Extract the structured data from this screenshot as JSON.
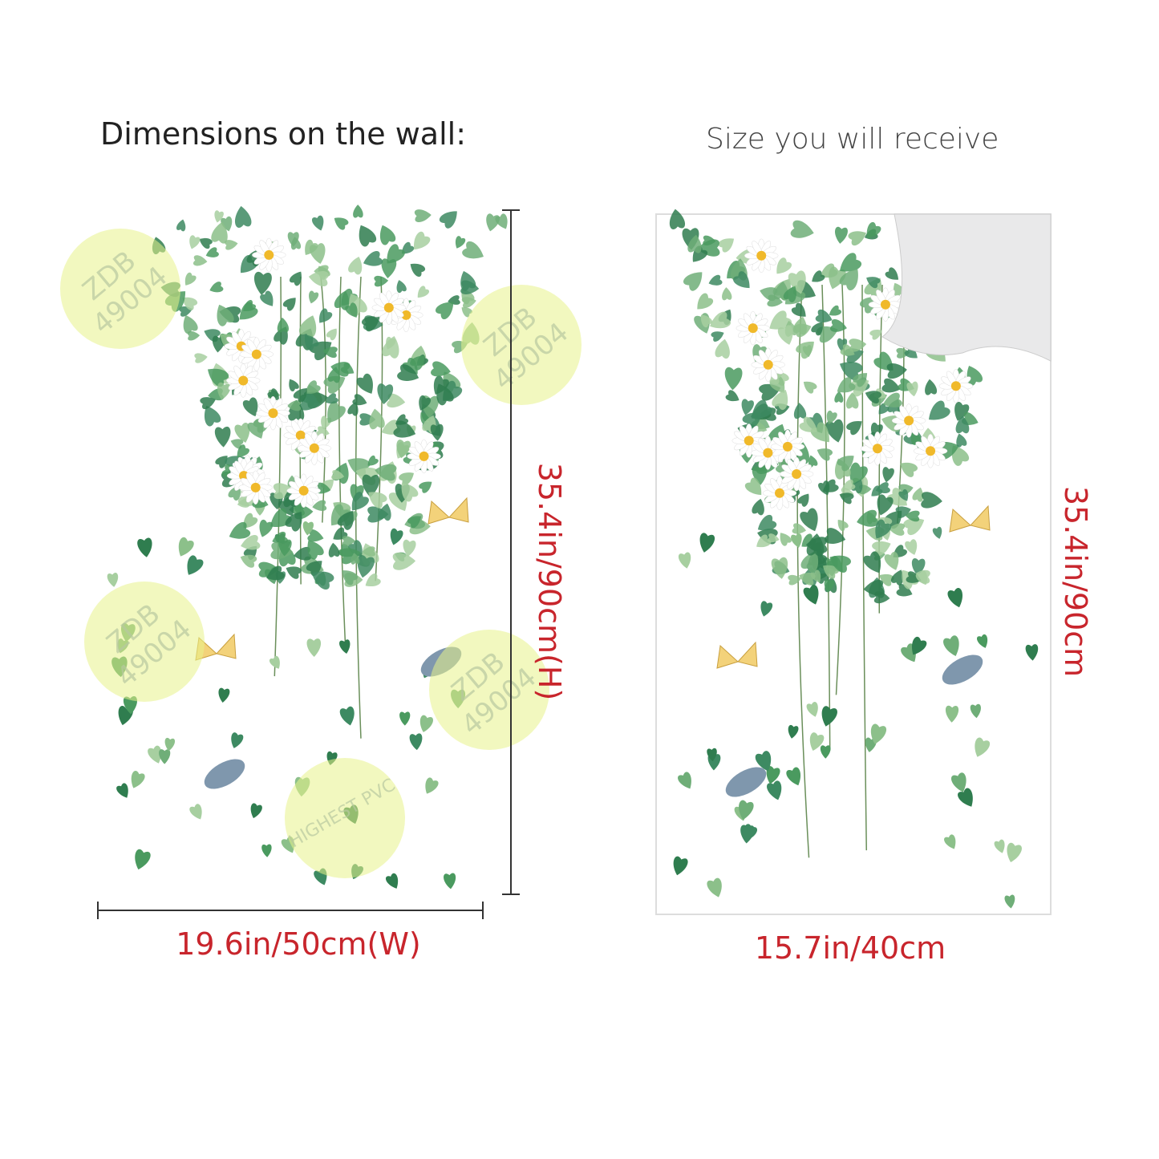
{
  "header": {
    "left_title": "Dimensions on the wall:",
    "right_title": "Size you will receive"
  },
  "wall": {
    "height_label": "35.4in/90cm(H)",
    "width_label": "19.6in/50cm(W)"
  },
  "sheet": {
    "height_label": "35.4in/90cm",
    "width_label": "15.7in/40cm"
  },
  "watermark": {
    "brand": "ZDB",
    "code": "49004",
    "seal": "HIGHEST PVC"
  }
}
